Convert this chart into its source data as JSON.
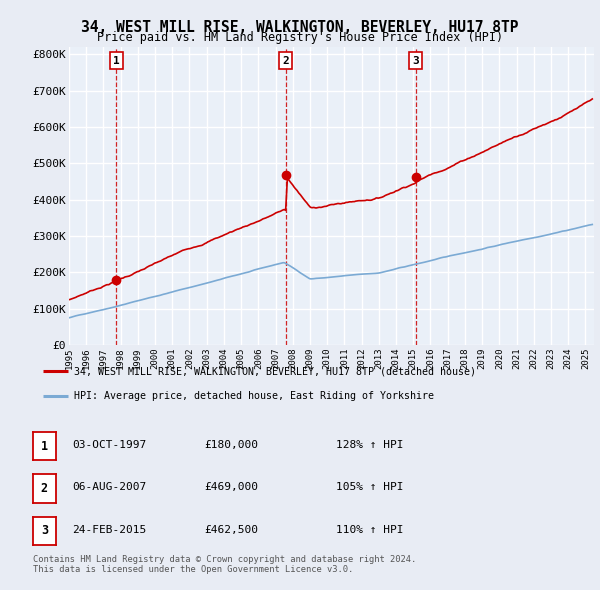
{
  "title": "34, WEST MILL RISE, WALKINGTON, BEVERLEY, HU17 8TP",
  "subtitle": "Price paid vs. HM Land Registry's House Price Index (HPI)",
  "property_label": "34, WEST MILL RISE, WALKINGTON, BEVERLEY, HU17 8TP (detached house)",
  "hpi_label": "HPI: Average price, detached house, East Riding of Yorkshire",
  "sale_dates_num": [
    1997.75,
    2007.59,
    2015.15
  ],
  "sale_prices": [
    180000,
    469000,
    462500
  ],
  "sale_labels": [
    "1",
    "2",
    "3"
  ],
  "sale_info": [
    {
      "num": "1",
      "date": "03-OCT-1997",
      "price": "£180,000",
      "hpi": "128% ↑ HPI"
    },
    {
      "num": "2",
      "date": "06-AUG-2007",
      "price": "£469,000",
      "hpi": "105% ↑ HPI"
    },
    {
      "num": "3",
      "date": "24-FEB-2015",
      "price": "£462,500",
      "hpi": "110% ↑ HPI"
    }
  ],
  "xlim": [
    1995.0,
    2025.5
  ],
  "ylim": [
    0,
    820000
  ],
  "yticks": [
    0,
    100000,
    200000,
    300000,
    400000,
    500000,
    600000,
    700000,
    800000
  ],
  "ytick_labels": [
    "£0",
    "£100K",
    "£200K",
    "£300K",
    "£400K",
    "£500K",
    "£600K",
    "£700K",
    "£800K"
  ],
  "xtick_years": [
    1995,
    1996,
    1997,
    1998,
    1999,
    2000,
    2001,
    2002,
    2003,
    2004,
    2005,
    2006,
    2007,
    2008,
    2009,
    2010,
    2011,
    2012,
    2013,
    2014,
    2015,
    2016,
    2017,
    2018,
    2019,
    2020,
    2021,
    2022,
    2023,
    2024,
    2025
  ],
  "bg_color": "#e8ecf4",
  "plot_bg": "#eaf0f8",
  "grid_color": "#ffffff",
  "red_line_color": "#cc0000",
  "blue_line_color": "#7baad4",
  "vline_color": "#cc0000",
  "footnote": "Contains HM Land Registry data © Crown copyright and database right 2024.\nThis data is licensed under the Open Government Licence v3.0."
}
